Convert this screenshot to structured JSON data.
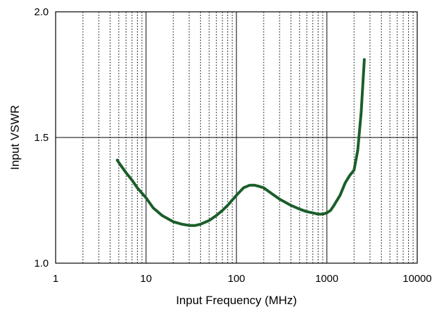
{
  "chart_data": {
    "type": "line",
    "xlabel": "Input Frequency (MHz)",
    "ylabel": "Input VSWR",
    "x_scale": "log",
    "xlim": [
      1,
      10000
    ],
    "ylim": [
      1.0,
      2.0
    ],
    "x_ticks": [
      "1",
      "10",
      "100",
      "1000",
      "10000"
    ],
    "y_ticks": [
      "1.0",
      "1.5",
      "2.0"
    ],
    "grid": "major solid, minor dashed (x)",
    "series": [
      {
        "color": "#1b5e2a",
        "x": [
          4.8,
          5,
          6,
          7,
          8,
          10,
          12,
          15,
          20,
          25,
          30,
          35,
          40,
          50,
          60,
          70,
          80,
          100,
          120,
          140,
          160,
          180,
          200,
          250,
          300,
          400,
          500,
          600,
          700,
          800,
          900,
          1000,
          1100,
          1200,
          1400,
          1600,
          1800,
          2000,
          2200,
          2400,
          2600
        ],
        "y": [
          1.41,
          1.4,
          1.36,
          1.33,
          1.3,
          1.26,
          1.22,
          1.19,
          1.165,
          1.155,
          1.15,
          1.15,
          1.155,
          1.17,
          1.19,
          1.21,
          1.23,
          1.27,
          1.3,
          1.31,
          1.31,
          1.305,
          1.3,
          1.275,
          1.255,
          1.23,
          1.215,
          1.205,
          1.2,
          1.195,
          1.195,
          1.2,
          1.21,
          1.23,
          1.27,
          1.32,
          1.35,
          1.37,
          1.45,
          1.6,
          1.81
        ]
      }
    ]
  }
}
